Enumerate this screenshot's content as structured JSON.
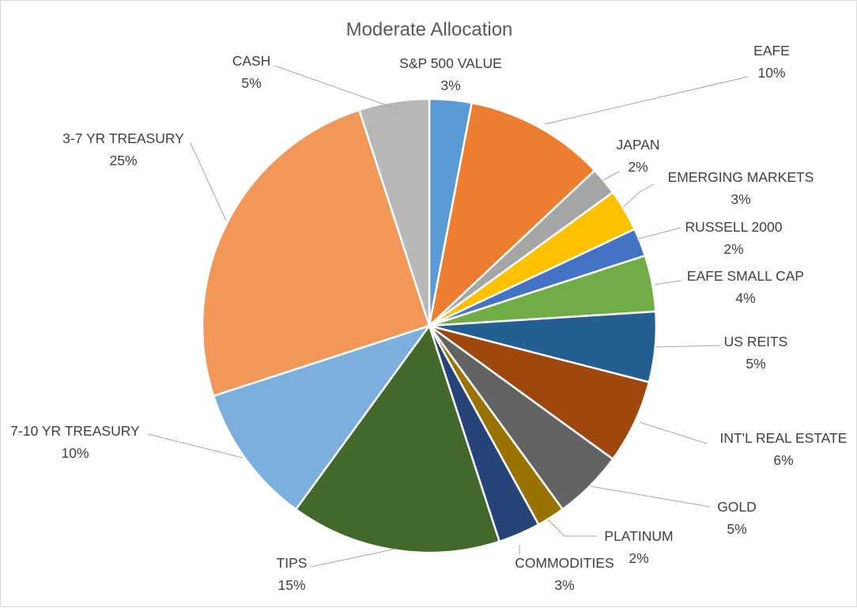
{
  "chart_data": {
    "type": "pie",
    "title": "Moderate Allocation",
    "slices": [
      {
        "label": "S&P 500 VALUE",
        "value": 3,
        "display": "3%",
        "color": "#5b9bd5"
      },
      {
        "label": "EAFE",
        "value": 10,
        "display": "10%",
        "color": "#ed7d31"
      },
      {
        "label": "JAPAN",
        "value": 2,
        "display": "2%",
        "color": "#a5a5a5"
      },
      {
        "label": "EMERGING MARKETS",
        "value": 3,
        "display": "3%",
        "color": "#ffc000"
      },
      {
        "label": "RUSSELL 2000",
        "value": 2,
        "display": "2%",
        "color": "#4472c4"
      },
      {
        "label": "EAFE SMALL CAP",
        "value": 4,
        "display": "4%",
        "color": "#70ad47"
      },
      {
        "label": "US REITS",
        "value": 5,
        "display": "5%",
        "color": "#255e91"
      },
      {
        "label": "INT'L REAL ESTATE",
        "value": 6,
        "display": "6%",
        "color": "#9e480e"
      },
      {
        "label": "GOLD",
        "value": 5,
        "display": "5%",
        "color": "#636363"
      },
      {
        "label": "PLATINUM",
        "value": 2,
        "display": "2%",
        "color": "#997300"
      },
      {
        "label": "COMMODITIES",
        "value": 3,
        "display": "3%",
        "color": "#264478"
      },
      {
        "label": "TIPS",
        "value": 15,
        "display": "15%",
        "color": "#43682b"
      },
      {
        "label": "7-10 YR TREASURY",
        "value": 10,
        "display": "10%",
        "color": "#7cafdd"
      },
      {
        "label": "3-7 YR TREASURY",
        "value": 25,
        "display": "25%",
        "color": "#f1975a"
      },
      {
        "label": "CASH",
        "value": 5,
        "display": "5%",
        "color": "#b7b7b7"
      }
    ]
  }
}
